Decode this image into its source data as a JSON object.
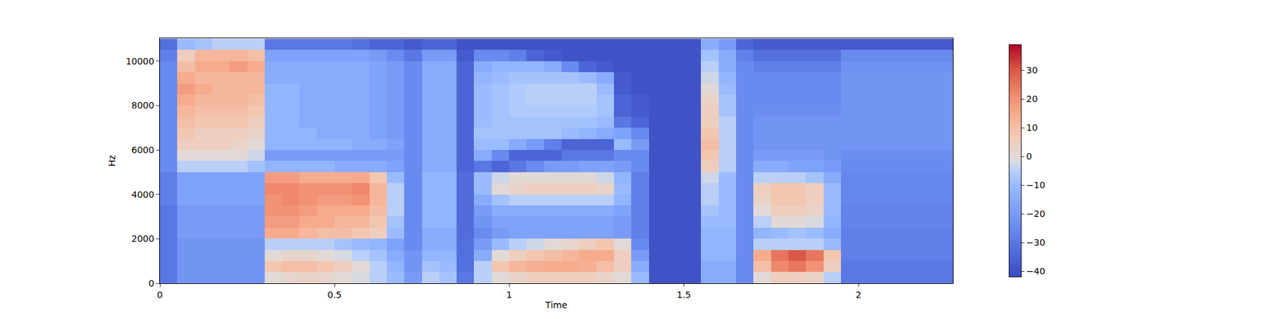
{
  "chart_data": {
    "type": "heatmap",
    "x_label": "Time",
    "y_label": "Hz",
    "xlim": [
      0,
      2.27
    ],
    "ylim": [
      0,
      11025
    ],
    "xticks": [
      0,
      0.5,
      1,
      1.5,
      2
    ],
    "yticks": [
      0,
      2000,
      4000,
      6000,
      8000,
      10000
    ],
    "color_range": [
      -42,
      39
    ],
    "color_ticks": [
      -40,
      -30,
      -20,
      -10,
      0,
      10,
      20,
      30
    ],
    "x": [
      0.025,
      0.075,
      0.125,
      0.175,
      0.225,
      0.275,
      0.325,
      0.375,
      0.425,
      0.475,
      0.525,
      0.575,
      0.625,
      0.675,
      0.725,
      0.775,
      0.825,
      0.875,
      0.925,
      0.975,
      1.025,
      1.075,
      1.125,
      1.175,
      1.225,
      1.275,
      1.325,
      1.375,
      1.425,
      1.475,
      1.525,
      1.575,
      1.625,
      1.675,
      1.725,
      1.775,
      1.825,
      1.875,
      1.925,
      1.975,
      2.025,
      2.075,
      2.125,
      2.175,
      2.225,
      2.275
    ],
    "y": [
      250,
      750,
      1250,
      1750,
      2250,
      2750,
      3250,
      3750,
      4250,
      4750,
      5250,
      5750,
      6250,
      6750,
      7250,
      7750,
      8250,
      8750,
      9250,
      9750,
      10250,
      10750
    ],
    "z": [
      [
        -30,
        -22,
        -22,
        -22,
        -22,
        -22,
        0,
        2,
        3,
        2,
        0,
        -2,
        -5,
        -10,
        -20,
        -5,
        -8,
        -30,
        -5,
        0,
        3,
        5,
        5,
        5,
        5,
        3,
        0,
        -10,
        -40,
        -40,
        -40,
        -15,
        -15,
        -25,
        0,
        5,
        5,
        3,
        -5,
        -30,
        -30,
        -30,
        -30,
        -30,
        -30,
        -30
      ],
      [
        -30,
        -22,
        -22,
        -22,
        -22,
        -22,
        8,
        10,
        10,
        8,
        5,
        0,
        -5,
        -12,
        -22,
        -8,
        -10,
        -32,
        -5,
        8,
        12,
        14,
        15,
        15,
        14,
        10,
        5,
        -15,
        -40,
        -40,
        -40,
        -15,
        -15,
        -25,
        10,
        22,
        25,
        20,
        5,
        -30,
        -30,
        -30,
        -30,
        -30,
        -30,
        -30
      ],
      [
        -30,
        -22,
        -22,
        -22,
        -22,
        -22,
        0,
        2,
        2,
        0,
        -2,
        -5,
        -8,
        -15,
        -22,
        -12,
        -12,
        -32,
        -15,
        0,
        5,
        8,
        10,
        12,
        15,
        15,
        5,
        -20,
        -40,
        -40,
        -40,
        -12,
        -12,
        -25,
        15,
        25,
        30,
        25,
        8,
        -28,
        -28,
        -28,
        -28,
        -28,
        -28,
        -28
      ],
      [
        -30,
        -22,
        -22,
        -22,
        -22,
        -22,
        -5,
        -5,
        -5,
        -5,
        -8,
        -10,
        -12,
        -18,
        -25,
        -15,
        -15,
        -32,
        -20,
        -10,
        -5,
        -3,
        0,
        2,
        5,
        8,
        0,
        -25,
        -40,
        -40,
        -40,
        -12,
        -12,
        -25,
        -5,
        -5,
        -5,
        -5,
        -10,
        -28,
        -28,
        -28,
        -28,
        -28,
        -28,
        -28
      ],
      [
        -30,
        -20,
        -20,
        -20,
        -20,
        -20,
        15,
        15,
        12,
        10,
        10,
        8,
        5,
        -10,
        -25,
        -15,
        -15,
        -33,
        -25,
        -20,
        -18,
        -18,
        -18,
        -18,
        -18,
        -18,
        -20,
        -28,
        -40,
        -40,
        -40,
        -12,
        -12,
        -25,
        -12,
        -10,
        -8,
        -10,
        -15,
        -28,
        -28,
        -28,
        -28,
        -28,
        -28,
        -28
      ],
      [
        -30,
        -20,
        -20,
        -20,
        -20,
        -20,
        18,
        18,
        15,
        15,
        12,
        12,
        8,
        -8,
        -25,
        -12,
        -12,
        -33,
        -22,
        -18,
        -18,
        -18,
        -18,
        -18,
        -18,
        -18,
        -20,
        -28,
        -40,
        -40,
        -40,
        -10,
        -10,
        -25,
        -5,
        0,
        0,
        -2,
        -12,
        -27,
        -27,
        -27,
        -27,
        -27,
        -27,
        -27
      ],
      [
        -30,
        -20,
        -20,
        -20,
        -20,
        -20,
        20,
        20,
        18,
        15,
        15,
        15,
        10,
        -5,
        -25,
        -12,
        -12,
        -33,
        -20,
        -15,
        -15,
        -15,
        -15,
        -15,
        -15,
        -15,
        -18,
        -28,
        -40,
        -40,
        -40,
        -8,
        -10,
        -25,
        0,
        5,
        5,
        3,
        -10,
        -27,
        -27,
        -27,
        -27,
        -27,
        -27,
        -27
      ],
      [
        -28,
        -18,
        -18,
        -18,
        -18,
        -18,
        20,
        22,
        20,
        18,
        18,
        20,
        12,
        -5,
        -25,
        -12,
        -12,
        -33,
        -15,
        -8,
        -5,
        -5,
        -5,
        -5,
        -5,
        -5,
        -12,
        -28,
        -40,
        -40,
        -40,
        -5,
        -10,
        -25,
        3,
        8,
        8,
        5,
        -10,
        -26,
        -26,
        -26,
        -26,
        -26,
        -26,
        -26
      ],
      [
        -28,
        -18,
        -18,
        -18,
        -18,
        -18,
        22,
        22,
        20,
        20,
        20,
        22,
        12,
        -5,
        -25,
        -12,
        -12,
        -33,
        -10,
        0,
        3,
        5,
        5,
        5,
        5,
        3,
        -10,
        -28,
        -40,
        -40,
        -40,
        -5,
        -10,
        -25,
        5,
        8,
        8,
        5,
        -10,
        -26,
        -26,
        -26,
        -26,
        -26,
        -26,
        -26
      ],
      [
        -28,
        -18,
        -18,
        -18,
        -18,
        -18,
        18,
        18,
        15,
        15,
        15,
        15,
        8,
        -10,
        -25,
        -12,
        -12,
        -33,
        -10,
        -3,
        0,
        0,
        0,
        0,
        0,
        -3,
        -12,
        -28,
        -40,
        -40,
        -40,
        -3,
        -10,
        -25,
        -5,
        -5,
        -5,
        -8,
        -15,
        -26,
        -26,
        -26,
        -26,
        -26,
        -26,
        -26
      ],
      [
        -25,
        -5,
        -5,
        -5,
        -5,
        -8,
        -12,
        -12,
        -12,
        -12,
        -15,
        -15,
        -15,
        -18,
        -25,
        -15,
        -15,
        -35,
        -30,
        -35,
        -30,
        -25,
        -20,
        -20,
        -18,
        -18,
        -20,
        -25,
        -40,
        -40,
        -40,
        5,
        -5,
        -25,
        -15,
        -15,
        -18,
        -18,
        -20,
        -25,
        -25,
        -25,
        -25,
        -25,
        -25,
        -25
      ],
      [
        -25,
        0,
        0,
        0,
        0,
        -3,
        -20,
        -20,
        -20,
        -20,
        -20,
        -20,
        -20,
        -20,
        -25,
        -15,
        -15,
        -35,
        -15,
        -25,
        -35,
        -35,
        -35,
        -30,
        -30,
        -30,
        -25,
        -25,
        -40,
        -40,
        -40,
        8,
        -5,
        -25,
        -20,
        -20,
        -20,
        -20,
        -22,
        -24,
        -24,
        -24,
        -24,
        -24,
        -24,
        -24
      ],
      [
        -25,
        5,
        5,
        5,
        3,
        0,
        -12,
        -12,
        -12,
        -12,
        -12,
        -15,
        -15,
        -18,
        -25,
        -15,
        -15,
        -35,
        -10,
        -10,
        -15,
        -20,
        -28,
        -35,
        -35,
        -35,
        -10,
        -20,
        -40,
        -40,
        -40,
        10,
        -5,
        -25,
        -22,
        -22,
        -22,
        -22,
        -22,
        -22,
        -22,
        -22,
        -22,
        -22,
        -22,
        -22
      ],
      [
        -25,
        8,
        5,
        5,
        5,
        3,
        -12,
        -12,
        -12,
        -15,
        -15,
        -15,
        -18,
        -20,
        -25,
        -15,
        -15,
        -35,
        -8,
        -8,
        -8,
        -8,
        -8,
        -10,
        -12,
        -15,
        -18,
        -25,
        -40,
        -40,
        -40,
        8,
        -5,
        -25,
        -22,
        -22,
        -22,
        -22,
        -22,
        -22,
        -22,
        -22,
        -22,
        -22,
        -22,
        -22
      ],
      [
        -25,
        10,
        8,
        8,
        8,
        5,
        -12,
        -12,
        -15,
        -15,
        -15,
        -15,
        -18,
        -20,
        -25,
        -15,
        -15,
        -35,
        -10,
        -8,
        -8,
        -8,
        -8,
        -8,
        -8,
        -10,
        -30,
        -35,
        -40,
        -40,
        -40,
        5,
        -5,
        -25,
        -22,
        -22,
        -22,
        -22,
        -22,
        -22,
        -22,
        -22,
        -22,
        -22,
        -22,
        -22
      ],
      [
        -25,
        12,
        10,
        10,
        10,
        8,
        -12,
        -12,
        -15,
        -15,
        -15,
        -15,
        -18,
        -20,
        -25,
        -15,
        -15,
        -35,
        -10,
        -8,
        -6,
        -6,
        -6,
        -6,
        -6,
        -8,
        -35,
        -38,
        -40,
        -40,
        -40,
        5,
        -8,
        -25,
        -24,
        -24,
        -24,
        -24,
        -24,
        -22,
        -22,
        -22,
        -22,
        -22,
        -22,
        -22
      ],
      [
        -25,
        15,
        12,
        12,
        12,
        10,
        -12,
        -12,
        -15,
        -15,
        -15,
        -15,
        -18,
        -20,
        -25,
        -15,
        -15,
        -35,
        -10,
        -8,
        -6,
        -5,
        -5,
        -5,
        -5,
        -8,
        -35,
        -38,
        -40,
        -40,
        -40,
        3,
        -8,
        -25,
        -25,
        -25,
        -25,
        -25,
        -25,
        -22,
        -22,
        -22,
        -22,
        -22,
        -22,
        -22
      ],
      [
        -25,
        18,
        15,
        12,
        12,
        12,
        -12,
        -12,
        -15,
        -15,
        -15,
        -15,
        -18,
        -20,
        -25,
        -15,
        -15,
        -35,
        -10,
        -8,
        -6,
        -5,
        -5,
        -5,
        -5,
        -10,
        -38,
        -40,
        -40,
        -40,
        -40,
        0,
        -10,
        -25,
        -25,
        -25,
        -25,
        -25,
        -25,
        -22,
        -22,
        -22,
        -22,
        -22,
        -22,
        -22
      ],
      [
        -25,
        15,
        12,
        12,
        12,
        12,
        -15,
        -15,
        -15,
        -15,
        -15,
        -15,
        -18,
        -20,
        -25,
        -15,
        -15,
        -35,
        -12,
        -10,
        -8,
        -8,
        -8,
        -8,
        -10,
        -15,
        -38,
        -40,
        -40,
        -40,
        -40,
        -3,
        -12,
        -25,
        -25,
        -25,
        -25,
        -25,
        -25,
        -22,
        -22,
        -22,
        -22,
        -22,
        -22,
        -22
      ],
      [
        -25,
        10,
        15,
        15,
        18,
        15,
        -15,
        -15,
        -15,
        -15,
        -15,
        -15,
        -18,
        -20,
        -25,
        -15,
        -15,
        -35,
        -15,
        -12,
        -12,
        -12,
        -15,
        -25,
        -35,
        -38,
        -40,
        -40,
        -40,
        -40,
        -40,
        -5,
        -15,
        -25,
        -28,
        -28,
        -28,
        -28,
        -28,
        -23,
        -23,
        -23,
        -23,
        -23,
        -23,
        -23
      ],
      [
        -28,
        5,
        12,
        12,
        12,
        10,
        -18,
        -18,
        -18,
        -18,
        -18,
        -18,
        -20,
        -25,
        -30,
        -20,
        -20,
        -38,
        -25,
        -25,
        -28,
        -35,
        -38,
        -40,
        -40,
        -40,
        -40,
        -40,
        -40,
        -40,
        -40,
        -8,
        -15,
        -28,
        -32,
        -32,
        -32,
        -32,
        -32,
        -25,
        -25,
        -25,
        -25,
        -25,
        -25,
        -25
      ],
      [
        -32,
        -10,
        -8,
        -5,
        -5,
        -5,
        -30,
        -30,
        -30,
        -30,
        -30,
        -32,
        -35,
        -35,
        -38,
        -35,
        -35,
        -40,
        -40,
        -40,
        -40,
        -40,
        -40,
        -40,
        -40,
        -40,
        -40,
        -40,
        -40,
        -40,
        -40,
        -15,
        -20,
        -35,
        -38,
        -38,
        -38,
        -38,
        -38,
        -38,
        -38,
        -38,
        -38,
        -38,
        -38,
        -38
      ]
    ]
  }
}
